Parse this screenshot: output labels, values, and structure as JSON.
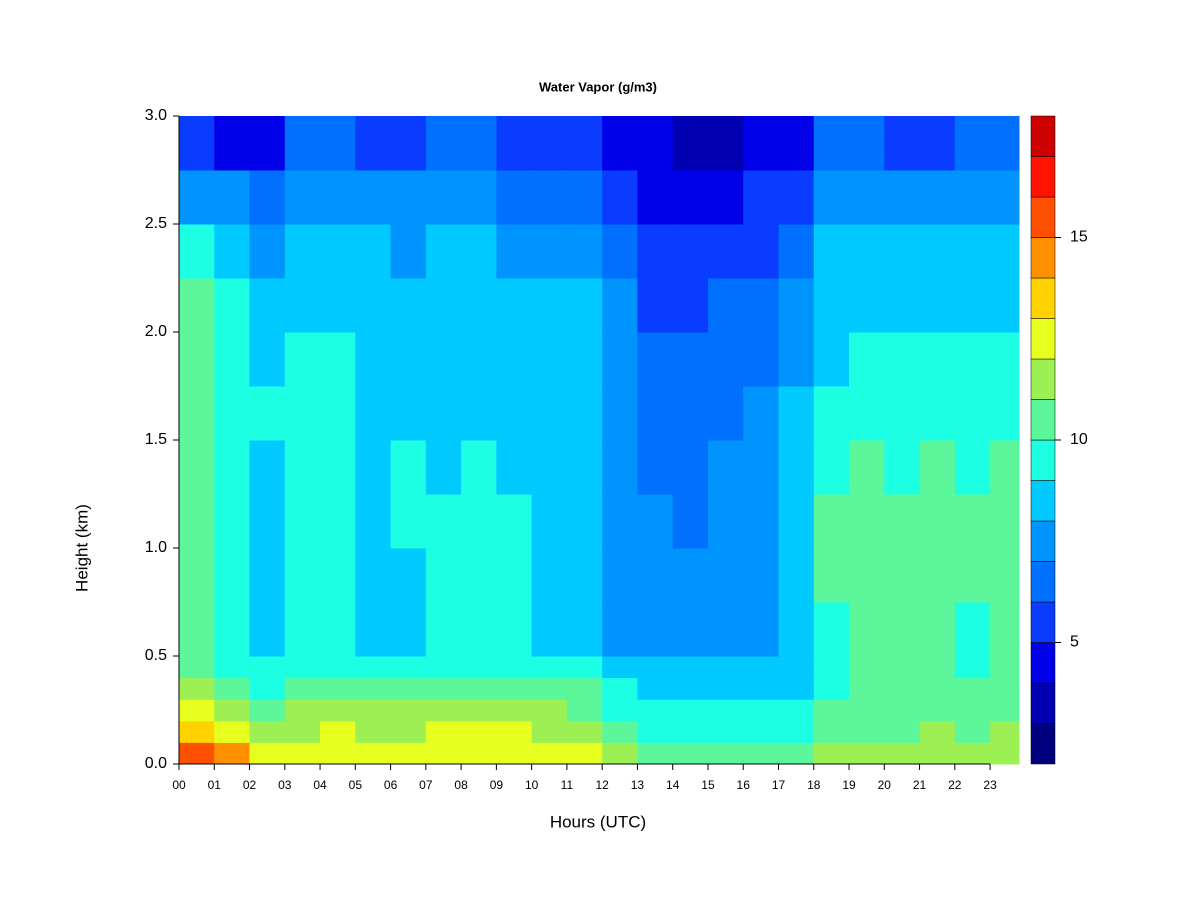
{
  "chart_data": {
    "type": "heatmap",
    "title": "Water Vapor (g/m3)",
    "x_label": "Hours (UTC)",
    "y_label": "Height (km)",
    "x": [
      0,
      1,
      2,
      3,
      4,
      5,
      6,
      7,
      8,
      9,
      10,
      11,
      12,
      13,
      14,
      15,
      16,
      17,
      18,
      19,
      20,
      21,
      22,
      23
    ],
    "y": [
      0,
      0.1,
      0.2,
      0.3,
      0.4,
      0.5,
      0.75,
      1.0,
      1.25,
      1.5,
      1.75,
      2.0,
      2.25,
      2.5,
      2.75
    ],
    "z": [
      [
        15.5,
        13.5,
        12.5,
        11.5,
        10.5,
        10.2,
        10.2,
        10.5,
        10.5,
        10.5,
        10.5,
        10.5,
        9.5,
        7.5,
        5.5
      ],
      [
        14.5,
        12.5,
        11.5,
        10.5,
        9.5,
        9.5,
        9.5,
        9.5,
        9.5,
        9.5,
        9.5,
        9.5,
        8.5,
        7.5,
        4.5
      ],
      [
        12.5,
        11.5,
        10.5,
        9.5,
        9.5,
        8.5,
        8.5,
        8.5,
        8.5,
        9.5,
        8.5,
        8.5,
        7.5,
        6.5,
        4.5
      ],
      [
        12.5,
        11.5,
        11.5,
        10.5,
        9.5,
        9.5,
        9.5,
        9.5,
        9.5,
        9.5,
        9.5,
        8.5,
        8.5,
        7.5,
        6.5
      ],
      [
        12.5,
        12.5,
        11.5,
        10.5,
        9.5,
        9.5,
        9.5,
        9.5,
        9.5,
        9.5,
        9.5,
        8.5,
        8.5,
        7.5,
        6.5
      ],
      [
        12.5,
        11.5,
        11.5,
        10.5,
        9.5,
        8.5,
        8.5,
        8.5,
        8.5,
        8.5,
        8.5,
        8.5,
        8.5,
        7.5,
        5.5
      ],
      [
        12.5,
        11.5,
        11.5,
        10.5,
        9.5,
        8.5,
        8.5,
        9.5,
        9.5,
        8.5,
        8.5,
        8.5,
        7.5,
        7.5,
        5.5
      ],
      [
        12.5,
        12.5,
        11.5,
        10.5,
        9.5,
        9.5,
        9.5,
        9.5,
        8.5,
        8.5,
        8.5,
        8.5,
        8.5,
        7.5,
        6.5
      ],
      [
        12.5,
        12.5,
        11.5,
        10.5,
        9.5,
        9.5,
        9.5,
        9.5,
        9.5,
        8.5,
        8.5,
        8.5,
        8.5,
        7.5,
        6.5
      ],
      [
        12.5,
        12.5,
        11.5,
        10.5,
        9.5,
        9.5,
        9.5,
        9.5,
        8.5,
        8.5,
        8.5,
        8.5,
        7.5,
        6.5,
        5.5
      ],
      [
        12.5,
        11.5,
        11.5,
        10.5,
        9.5,
        8.5,
        8.5,
        8.5,
        8.5,
        8.5,
        8.5,
        8.5,
        7.5,
        6.5,
        5.5
      ],
      [
        12.5,
        11.5,
        10.5,
        10.5,
        9.5,
        8.5,
        8.5,
        8.5,
        8.5,
        8.5,
        8.5,
        8.5,
        7.5,
        6.5,
        5.5
      ],
      [
        11.5,
        10.5,
        9.5,
        9.5,
        8.5,
        7.5,
        7.5,
        7.5,
        7.5,
        7.5,
        7.5,
        7.5,
        6.5,
        5.5,
        4.5
      ],
      [
        10.5,
        9.5,
        9.5,
        8.5,
        8.5,
        7.5,
        7.5,
        7.5,
        6.5,
        6.5,
        6.5,
        5.5,
        5.5,
        4.5,
        4.5
      ],
      [
        10.5,
        9.5,
        9.5,
        8.5,
        8.5,
        7.5,
        7.5,
        6.5,
        6.5,
        6.5,
        6.5,
        5.5,
        5.5,
        4.5,
        3.5
      ],
      [
        10.5,
        9.5,
        9.5,
        8.5,
        8.5,
        7.5,
        7.5,
        7.5,
        7.5,
        6.5,
        6.5,
        6.5,
        5.5,
        4.5,
        3.5
      ],
      [
        10.5,
        9.5,
        9.5,
        8.5,
        8.5,
        7.5,
        7.5,
        7.5,
        7.5,
        7.5,
        6.5,
        6.5,
        5.5,
        5.5,
        4.5
      ],
      [
        10.5,
        9.5,
        9.5,
        8.5,
        8.5,
        8.5,
        8.5,
        8.5,
        8.5,
        8.5,
        7.5,
        7.5,
        6.5,
        5.5,
        4.5
      ],
      [
        11.5,
        10.5,
        10.5,
        9.5,
        9.5,
        9.5,
        10.5,
        10.5,
        9.5,
        9.5,
        8.5,
        8.5,
        8.5,
        7.5,
        6.5
      ],
      [
        11.5,
        10.5,
        10.5,
        10.5,
        10.5,
        10.5,
        10.5,
        10.5,
        10.5,
        9.5,
        9.5,
        8.5,
        8.5,
        7.5,
        6.5
      ],
      [
        11.5,
        10.5,
        10.5,
        10.5,
        10.5,
        10.5,
        10.5,
        10.5,
        9.5,
        9.5,
        9.5,
        8.5,
        8.5,
        7.5,
        5.5
      ],
      [
        11.5,
        11.5,
        10.5,
        10.5,
        10.5,
        10.5,
        10.5,
        10.5,
        10.5,
        9.5,
        9.5,
        8.5,
        8.5,
        7.5,
        5.5
      ],
      [
        11.5,
        10.5,
        10.5,
        10.5,
        9.5,
        9.5,
        10.5,
        10.5,
        9.5,
        9.5,
        9.5,
        8.5,
        8.5,
        7.5,
        6.5
      ],
      [
        11.5,
        11.5,
        10.5,
        10.5,
        10.5,
        10.5,
        10.5,
        10.5,
        10.5,
        9.5,
        9.5,
        8.5,
        8.5,
        7.5,
        6.5
      ]
    ],
    "levels": [
      2,
      3,
      4,
      5,
      6,
      7,
      8,
      9,
      10,
      11,
      12,
      13,
      14,
      15,
      16,
      17,
      18
    ],
    "colors": [
      "#00007f",
      "#0000b2",
      "#0000e8",
      "#0a3cff",
      "#0070ff",
      "#0094ff",
      "#00caff",
      "#1cffe2",
      "#5cf79a",
      "#9cf054",
      "#e6ff1e",
      "#ffd200",
      "#ff9000",
      "#ff5000",
      "#ff1400",
      "#cc0000",
      "#800000"
    ],
    "xlim": [
      0,
      23.82
    ],
    "ylim": [
      0,
      3
    ],
    "xticks": [
      {
        "value": 0,
        "label": "00"
      },
      {
        "value": 1,
        "label": "01"
      },
      {
        "value": 2,
        "label": "02"
      },
      {
        "value": 3,
        "label": "03"
      },
      {
        "value": 4,
        "label": "04"
      },
      {
        "value": 5,
        "label": "05"
      },
      {
        "value": 6,
        "label": "06"
      },
      {
        "value": 7,
        "label": "07"
      },
      {
        "value": 8,
        "label": "08"
      },
      {
        "value": 9,
        "label": "09"
      },
      {
        "value": 10,
        "label": "10"
      },
      {
        "value": 11,
        "label": "11"
      },
      {
        "value": 12,
        "label": "12"
      },
      {
        "value": 13,
        "label": "13"
      },
      {
        "value": 14,
        "label": "14"
      },
      {
        "value": 15,
        "label": "15"
      },
      {
        "value": 16,
        "label": "16"
      },
      {
        "value": 17,
        "label": "17"
      },
      {
        "value": 18,
        "label": "18"
      },
      {
        "value": 19,
        "label": "19"
      },
      {
        "value": 20,
        "label": "20"
      },
      {
        "value": 21,
        "label": "21"
      },
      {
        "value": 22,
        "label": "22"
      },
      {
        "value": 23,
        "label": "23"
      }
    ],
    "yticks": [
      {
        "value": 0,
        "label": "0.0"
      },
      {
        "value": 0.5,
        "label": "0.5"
      },
      {
        "value": 1,
        "label": "1.0"
      },
      {
        "value": 1.5,
        "label": "1.5"
      },
      {
        "value": 2,
        "label": "2.0"
      },
      {
        "value": 2.5,
        "label": "2.5"
      },
      {
        "value": 3,
        "label": "3.0"
      }
    ],
    "colorbar_ticks": [
      5,
      10,
      15
    ]
  }
}
